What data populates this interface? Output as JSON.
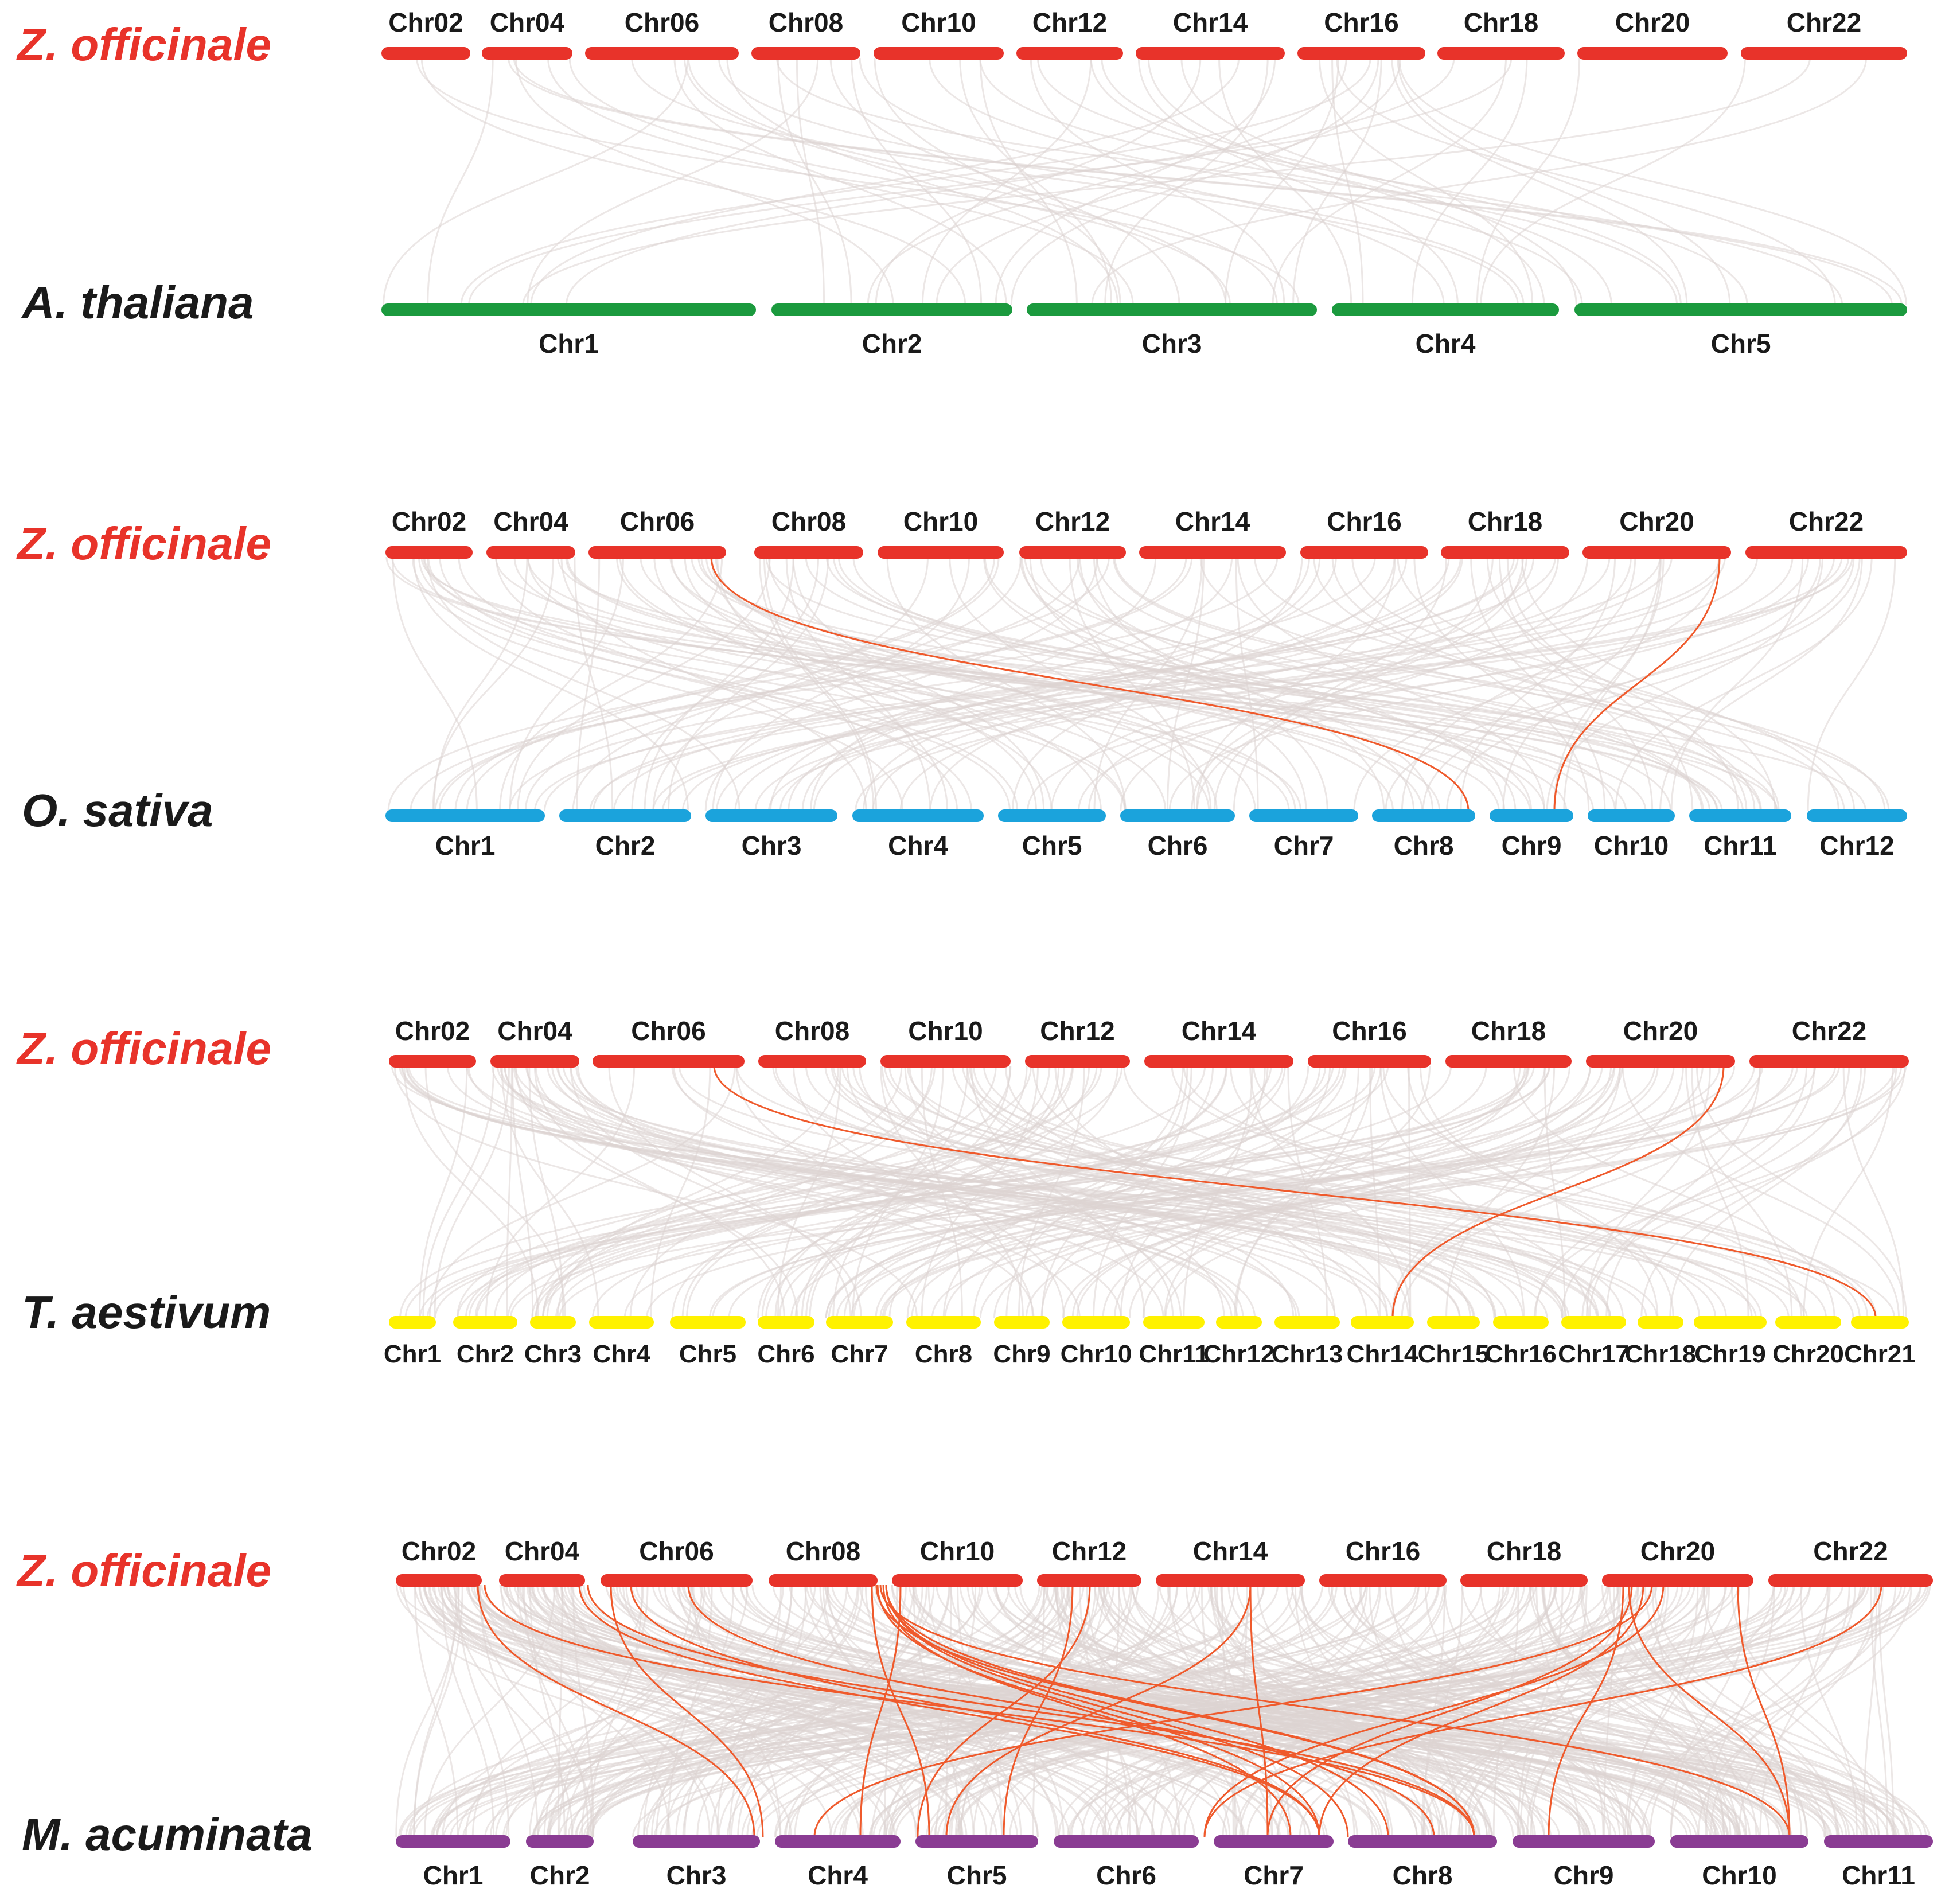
{
  "colors": {
    "zingiber": "#e8332a",
    "arabidopsis": "#1b9a3e",
    "oryza": "#1ba3dc",
    "triticum": "#fff200",
    "musa": "#8a3c93",
    "link_gray": "#ddd3d1",
    "link_highlight": "#ef5a2c",
    "species_ref_text": "#e8332a",
    "species_other_text": "#1a1a1a"
  },
  "panels": [
    {
      "reference": {
        "name": "Z. officinale",
        "chromosomes": [
          "Chr02",
          "Chr04",
          "Chr06",
          "Chr08",
          "Chr10",
          "Chr12",
          "Chr14",
          "Chr16",
          "Chr18",
          "Chr20",
          "Chr22"
        ]
      },
      "target": {
        "name": "A. thaliana",
        "chromosomes": [
          "Chr1",
          "Chr2",
          "Chr3",
          "Chr4",
          "Chr5"
        ]
      }
    },
    {
      "reference": {
        "name": "Z. officinale",
        "chromosomes": [
          "Chr02",
          "Chr04",
          "Chr06",
          "Chr08",
          "Chr10",
          "Chr12",
          "Chr14",
          "Chr16",
          "Chr18",
          "Chr20",
          "Chr22"
        ]
      },
      "target": {
        "name": "O. sativa",
        "chromosomes": [
          "Chr1",
          "Chr2",
          "Chr3",
          "Chr4",
          "Chr5",
          "Chr6",
          "Chr7",
          "Chr8",
          "Chr9",
          "Chr10",
          "Chr11",
          "Chr12"
        ]
      }
    },
    {
      "reference": {
        "name": "Z. officinale",
        "chromosomes": [
          "Chr02",
          "Chr04",
          "Chr06",
          "Chr08",
          "Chr10",
          "Chr12",
          "Chr14",
          "Chr16",
          "Chr18",
          "Chr20",
          "Chr22"
        ]
      },
      "target": {
        "name": "T. aestivum",
        "chromosomes": [
          "Chr1",
          "Chr2",
          "Chr3",
          "Chr4",
          "Chr5",
          "Chr6",
          "Chr7",
          "Chr8",
          "Chr9",
          "Chr10",
          "Chr11",
          "Chr12",
          "Chr13",
          "Chr14",
          "Chr15",
          "Chr16",
          "Chr17",
          "Chr18",
          "Chr19",
          "Chr20",
          "Chr21"
        ]
      }
    },
    {
      "reference": {
        "name": "Z. officinale",
        "chromosomes": [
          "Chr02",
          "Chr04",
          "Chr06",
          "Chr08",
          "Chr10",
          "Chr12",
          "Chr14",
          "Chr16",
          "Chr18",
          "Chr20",
          "Chr22"
        ]
      },
      "target": {
        "name": "M. acuminata",
        "chromosomes": [
          "Chr1",
          "Chr2",
          "Chr3",
          "Chr4",
          "Chr5",
          "Chr6",
          "Chr7",
          "Chr8",
          "Chr9",
          "Chr10",
          "Chr11"
        ]
      }
    }
  ]
}
